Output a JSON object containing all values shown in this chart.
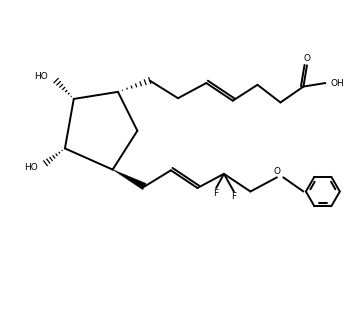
{
  "background_color": "#ffffff",
  "line_color": "#000000",
  "line_width": 1.4,
  "figsize": [
    3.56,
    3.18
  ],
  "dpi": 100,
  "xlim": [
    0,
    10
  ],
  "ylim": [
    0,
    9
  ]
}
